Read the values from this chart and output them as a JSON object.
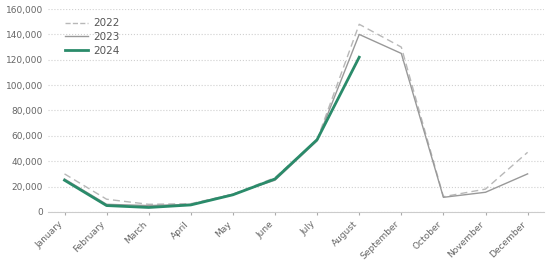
{
  "months": [
    "January",
    "February",
    "March",
    "April",
    "May",
    "June",
    "July",
    "August",
    "September",
    "October",
    "November",
    "December"
  ],
  "series_2022": [
    30000,
    10000,
    6000,
    6500,
    14000,
    27000,
    57000,
    148000,
    130000,
    12000,
    18000,
    47000
  ],
  "series_2023": [
    26000,
    6000,
    5000,
    6000,
    14000,
    25000,
    56000,
    140000,
    125000,
    11500,
    15500,
    30000
  ],
  "series_2024": [
    25000,
    5000,
    3500,
    5500,
    13500,
    26000,
    57000,
    122000,
    null,
    null,
    null,
    null
  ],
  "color_2022": "#b8b8b8",
  "color_2023": "#999999",
  "color_2024": "#2a8b6a",
  "ylim": [
    0,
    160000
  ],
  "yticks": [
    0,
    20000,
    40000,
    60000,
    80000,
    100000,
    120000,
    140000,
    160000
  ],
  "background_color": "#ffffff",
  "grid_color": "#d0d0d0",
  "legend_fontsize": 7.5,
  "tick_fontsize": 6.5
}
